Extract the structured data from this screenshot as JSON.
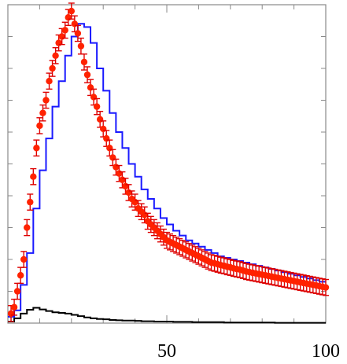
{
  "chart_data": {
    "type": "scatter",
    "title": "",
    "xlabel": "",
    "ylabel": "",
    "xlim": [
      0,
      100
    ],
    "ylim": [
      0,
      100
    ],
    "grid": false,
    "legend": "none",
    "x_tick_labels": [
      "50",
      "100"
    ],
    "x_tick_values": [
      50,
      100
    ],
    "x_minor_step": 10,
    "y_minor_step": 10,
    "series": [
      {
        "kind": "points",
        "color": "#ff2200",
        "error_color": "#dd0000",
        "x": [
          1,
          2,
          3,
          4,
          5,
          6,
          7,
          8,
          9,
          10,
          11,
          12,
          13,
          14,
          15,
          16,
          17,
          18,
          19,
          20,
          21,
          22,
          23,
          24,
          25,
          26,
          27,
          28,
          29,
          30,
          31,
          32,
          33,
          34,
          35,
          36,
          37,
          38,
          39,
          40,
          41,
          42,
          43,
          44,
          45,
          46,
          47,
          48,
          49,
          50,
          51,
          52,
          53,
          54,
          55,
          56,
          57,
          58,
          59,
          60,
          61,
          62,
          63,
          64,
          65,
          66,
          67,
          68,
          69,
          70,
          71,
          72,
          73,
          74,
          75,
          76,
          77,
          78,
          79,
          80,
          81,
          82,
          83,
          84,
          85,
          86,
          87,
          88,
          89,
          90,
          91,
          92,
          93,
          94,
          95,
          96,
          97,
          98,
          99,
          100
        ],
        "y": [
          3,
          5,
          10,
          15,
          20,
          30,
          38,
          46,
          55,
          62,
          66,
          70,
          76,
          80,
          84,
          88,
          90,
          92,
          96,
          98,
          94,
          91,
          87,
          82,
          78,
          74,
          71,
          68,
          64,
          61,
          58,
          55,
          52,
          49,
          47,
          45,
          43,
          41,
          39,
          38,
          36,
          35,
          34,
          32,
          31,
          30,
          29,
          28,
          27,
          26,
          25.5,
          25,
          24.5,
          24,
          23.5,
          23,
          22.5,
          22,
          21.5,
          21,
          20.5,
          20,
          19.5,
          19,
          18.8,
          18.5,
          18.2,
          18,
          17.7,
          17.5,
          17.2,
          17,
          16.8,
          16.5,
          16.2,
          16,
          15.8,
          15.6,
          15.4,
          15.2,
          15,
          14.8,
          14.6,
          14.4,
          14.2,
          14,
          13.8,
          13.6,
          13.4,
          13.2,
          13,
          12.8,
          12.6,
          12.4,
          12.2,
          12,
          11.8,
          11.6,
          11.4,
          11.2
        ],
        "yerr": 2.5
      },
      {
        "kind": "step",
        "color": "#1a1aff",
        "x": [
          0,
          2,
          4,
          6,
          8,
          10,
          12,
          14,
          16,
          18,
          20,
          22,
          24,
          26,
          28,
          30,
          32,
          34,
          36,
          38,
          40,
          42,
          44,
          46,
          48,
          50,
          52,
          54,
          56,
          58,
          60,
          62,
          64,
          66,
          68,
          70,
          72,
          74,
          76,
          78,
          80,
          82,
          84,
          86,
          88,
          90,
          92,
          94,
          96,
          98,
          100
        ],
        "y": [
          2,
          4,
          12,
          22,
          36,
          48,
          58,
          68,
          76,
          84,
          90,
          94,
          93,
          88,
          80,
          73,
          66,
          60,
          55,
          50,
          46,
          42,
          39,
          36,
          33,
          31,
          29,
          27.5,
          26,
          25,
          24,
          23,
          22,
          21,
          20.5,
          20,
          19.5,
          19,
          18.5,
          18,
          17.5,
          17,
          16.5,
          16,
          15.5,
          15,
          14.5,
          14,
          13.5,
          13,
          13
        ]
      },
      {
        "kind": "step",
        "color": "#000000",
        "x": [
          0,
          2,
          4,
          6,
          8,
          10,
          12,
          14,
          16,
          18,
          20,
          22,
          24,
          26,
          28,
          30,
          32,
          34,
          36,
          38,
          40,
          42,
          44,
          46,
          48,
          50,
          52,
          54,
          56,
          58,
          60,
          62,
          64,
          66,
          68,
          70,
          72,
          74,
          76,
          78,
          80,
          82,
          84,
          86,
          88,
          90,
          92,
          94,
          96,
          98,
          100
        ],
        "y": [
          0.5,
          1.5,
          3,
          4.2,
          4.8,
          4.3,
          3.8,
          3.4,
          3.2,
          3,
          2.6,
          2.2,
          1.8,
          1.5,
          1.3,
          1.2,
          1,
          0.9,
          0.8,
          0.8,
          0.7,
          0.6,
          0.6,
          0.5,
          0.5,
          0.5,
          0.4,
          0.4,
          0.4,
          0.3,
          0.3,
          0.3,
          0.3,
          0.3,
          0.2,
          0.2,
          0.2,
          0.2,
          0.2,
          0.2,
          0.2,
          0.2,
          0.1,
          0.1,
          0.1,
          0.1,
          0.1,
          0.1,
          0.1,
          0.1,
          0.1
        ]
      }
    ]
  }
}
